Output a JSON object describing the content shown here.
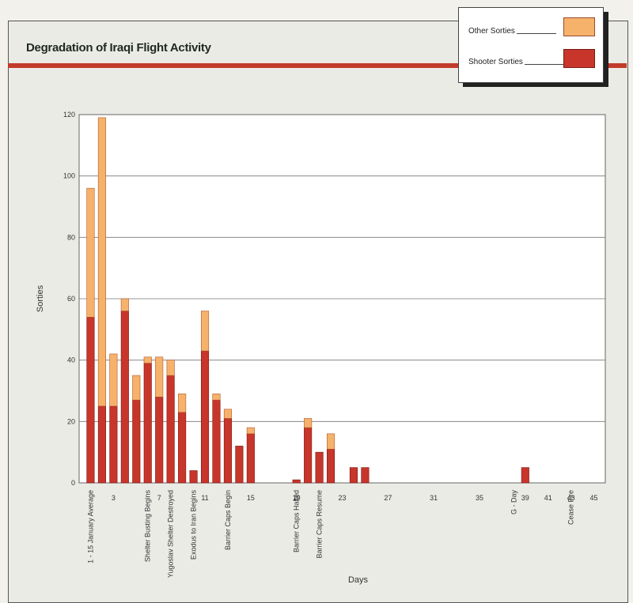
{
  "title": "Degradation of Iraqi Flight Activity",
  "legend": {
    "other": "Other Sorties",
    "shooter": "Shooter Sorties"
  },
  "colors": {
    "shooter": "#c8352b",
    "other": "#f6b26b",
    "redline": "#c23a2a",
    "plot_bg": "#ffffff"
  },
  "chart_data": {
    "type": "bar",
    "stacked": true,
    "title": "Degradation of Iraqi Flight Activity",
    "xlabel": "Days",
    "ylabel": "Sorties",
    "ylim": [
      0,
      120
    ],
    "yticks": [
      0,
      20,
      40,
      60,
      80,
      100,
      120
    ],
    "xlim": [
      0,
      46
    ],
    "grid": true,
    "legend_position": "top-right",
    "day_ticks": [
      3,
      7,
      11,
      15,
      19,
      23,
      27,
      31,
      35,
      39,
      41,
      43,
      45
    ],
    "day_tick_labels": [
      "3",
      "7",
      "11",
      "15",
      "19",
      "23",
      "27",
      "31",
      "35",
      "39",
      "41",
      "43",
      "45"
    ],
    "categories": [
      "1 - 15 January Average",
      "2",
      "3",
      "4",
      "5",
      "6",
      "7",
      "8",
      "9",
      "10",
      "11",
      "12",
      "13",
      "14",
      "15",
      "19",
      "20",
      "21",
      "22",
      "24",
      "25",
      "39"
    ],
    "x": [
      1,
      2,
      3,
      4,
      5,
      6,
      7,
      8,
      9,
      10,
      11,
      12,
      13,
      14,
      15,
      19,
      20,
      21,
      22,
      24,
      25,
      39
    ],
    "series": [
      {
        "name": "Shooter Sorties",
        "values": [
          54,
          25,
          25,
          56,
          27,
          39,
          28,
          35,
          23,
          4,
          43,
          27,
          21,
          12,
          16,
          1,
          18,
          10,
          11,
          5,
          5,
          5
        ]
      },
      {
        "name": "Other Sorties",
        "values": [
          42,
          94,
          17,
          4,
          8,
          2,
          13,
          5,
          6,
          0,
          13,
          2,
          3,
          0,
          2,
          0,
          3,
          0,
          5,
          0,
          0,
          0
        ]
      }
    ],
    "annotations": [
      {
        "day": 1,
        "text": "1 - 15 January Average"
      },
      {
        "day": 6,
        "text": "Shelter Busting Begins"
      },
      {
        "day": 8,
        "text": "Yugoslav Shelter Destroyed"
      },
      {
        "day": 10,
        "text": "Exodus to Iran Begins"
      },
      {
        "day": 13,
        "text": "Barrier Caps Begin"
      },
      {
        "day": 19,
        "text": "Barrier Caps Halted"
      },
      {
        "day": 21,
        "text": "Barrier Caps Resume"
      },
      {
        "day": 38,
        "text": "G - Day"
      },
      {
        "day": 43,
        "text": "Cease Fire"
      }
    ]
  }
}
